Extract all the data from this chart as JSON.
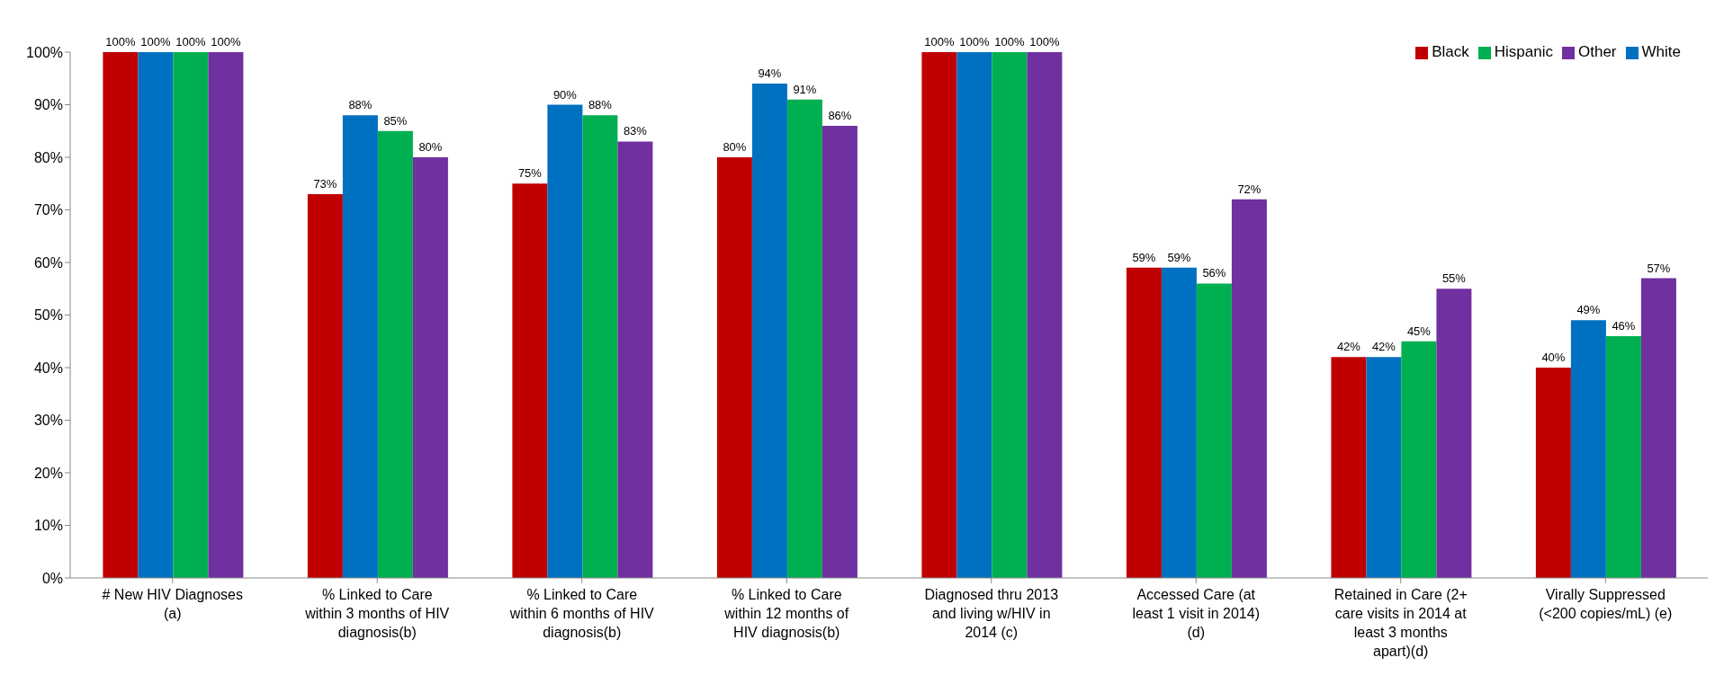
{
  "chart_data": {
    "type": "bar",
    "categories": [
      "# New HIV Diagnoses (a)",
      "% Linked to Care within 3 months of HIV diagnosis(b)",
      "% Linked to Care within 6 months of HIV diagnosis(b)",
      "% Linked to Care within 12 months of HIV diagnosis(b)",
      "Diagnosed thru 2013 and living w/HIV in 2014 (c)",
      "Accessed Care (at least 1 visit in 2014) (d)",
      "Retained in Care (2+ care visits in 2014 at least 3 months apart)(d)",
      "Virally Suppressed (<200 copies/mL) (e)"
    ],
    "series": [
      {
        "name": "Black",
        "color": "#c00000",
        "values": [
          100,
          73,
          75,
          80,
          100,
          59,
          42,
          40
        ],
        "value_labels": [
          "100%",
          "73%",
          "75%",
          "80%",
          "100%",
          "59%",
          "42%",
          "40%"
        ]
      },
      {
        "name": "White",
        "color": "#0070c0",
        "values": [
          100,
          88,
          90,
          94,
          100,
          59,
          42,
          49
        ],
        "value_labels": [
          "100%",
          "88%",
          "90%",
          "94%",
          "100%",
          "59%",
          "42%",
          "49%"
        ]
      },
      {
        "name": "Hispanic",
        "color": "#00b050",
        "values": [
          100,
          85,
          88,
          91,
          100,
          56,
          45,
          46
        ],
        "value_labels": [
          "100%",
          "85%",
          "88%",
          "91%",
          "100%",
          "56%",
          "45%",
          "46%"
        ]
      },
      {
        "name": "Other",
        "color": "#7030a0",
        "values": [
          100,
          80,
          83,
          86,
          100,
          72,
          55,
          57
        ],
        "value_labels": [
          "100%",
          "80%",
          "83%",
          "86%",
          "100%",
          "72%",
          "55%",
          "57%"
        ]
      }
    ],
    "ylim": [
      0,
      100
    ],
    "yticks": [
      {
        "value": 0,
        "label": "0%"
      },
      {
        "value": 10,
        "label": "10%"
      },
      {
        "value": 20,
        "label": "20%"
      },
      {
        "value": 30,
        "label": "30%"
      },
      {
        "value": 40,
        "label": "40%"
      },
      {
        "value": 50,
        "label": "50%"
      },
      {
        "value": 60,
        "label": "60%"
      },
      {
        "value": 70,
        "label": "70%"
      },
      {
        "value": 80,
        "label": "80%"
      },
      {
        "value": 90,
        "label": "90%"
      },
      {
        "value": 100,
        "label": "100%"
      }
    ],
    "legend": "top right"
  }
}
